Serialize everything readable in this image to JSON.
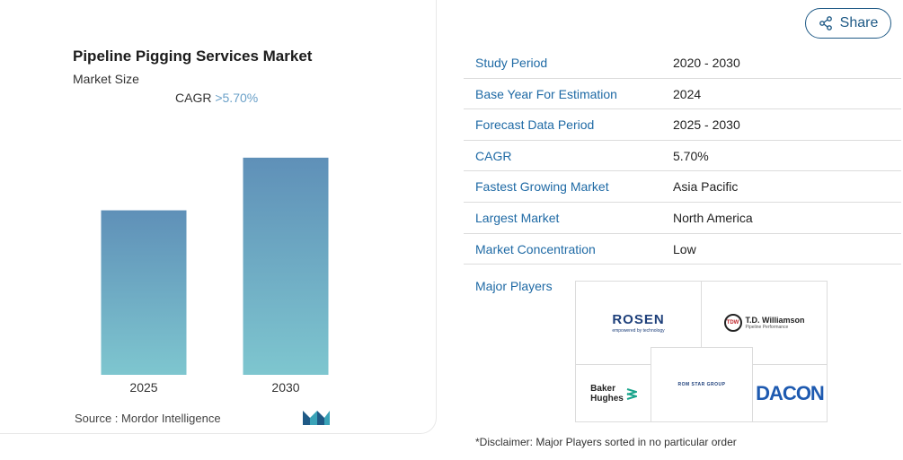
{
  "card": {
    "title": "Pipeline Pigging Services Market",
    "subtitle": "Market Size",
    "cagr_label": "CAGR",
    "cagr_value": ">5.70%",
    "source": "Source :  Mordor Intelligence"
  },
  "chart_data": {
    "type": "bar",
    "categories": [
      "2025",
      "2030"
    ],
    "values": [
      1.0,
      1.32
    ],
    "title": "",
    "xlabel": "",
    "ylabel": "",
    "ylim": [
      0,
      1.45
    ],
    "grid": false,
    "colors": {
      "top": "#5f90b8",
      "bottom": "#7ec6cf"
    }
  },
  "share": {
    "label": "Share",
    "icon": "share-icon"
  },
  "stats": [
    {
      "key": "Study Period",
      "value": "2020 - 2030"
    },
    {
      "key": "Base Year For Estimation",
      "value": "2024"
    },
    {
      "key": "Forecast Data Period",
      "value": "2025 - 2030"
    },
    {
      "key": "CAGR",
      "value": "5.70%"
    },
    {
      "key": "Fastest Growing Market",
      "value": "Asia Pacific"
    },
    {
      "key": "Largest Market",
      "value": "North America"
    },
    {
      "key": "Market Concentration",
      "value": "Low"
    }
  ],
  "major_players": {
    "label": "Major Players",
    "logos": {
      "rosen": "ROSEN",
      "rosen_tag": "empowered by technology",
      "tdw": "T.D. Williamson",
      "tdw_tag": "Pipeline Performance",
      "tdw_badge": "TDW",
      "baker1": "Baker",
      "baker2": "Hughes",
      "romstar": "ROM STAR GROUP",
      "dacon": "DACON"
    }
  },
  "disclaimer": "*Disclaimer: Major Players sorted in no particular order",
  "colors": {
    "accent": "#1f6aa5",
    "cagr": "#6aa0c8"
  }
}
